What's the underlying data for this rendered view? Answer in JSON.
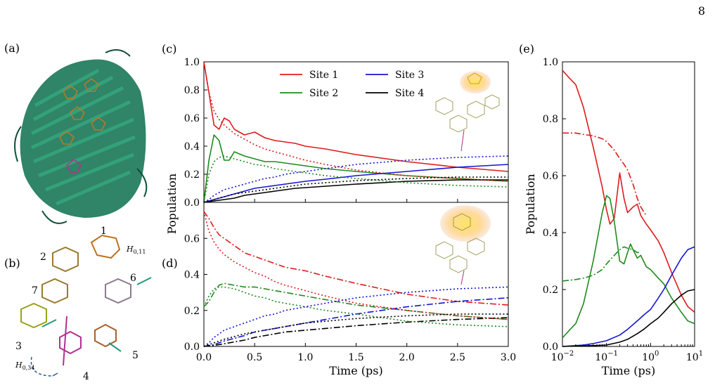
{
  "page_number": "8",
  "panel_labels": {
    "a": "(a)",
    "b": "(b)",
    "c": "(c)",
    "d": "(d)",
    "e": "(e)"
  },
  "structure_b": {
    "site_labels": [
      "1",
      "2",
      "3",
      "4",
      "5",
      "6",
      "7"
    ],
    "coupling_labels": {
      "h011": "H",
      "h011_sub": "0,11",
      "h034": "H",
      "h034_sub": "0,34"
    }
  },
  "colors": {
    "site1": "#dd1c1c",
    "site2": "#1f8a1f",
    "site3": "#1414d4",
    "site4": "#000000",
    "protein": "#1e7a5a"
  },
  "chart_data": [
    {
      "id": "c",
      "type": "line",
      "xlim": [
        0,
        3
      ],
      "ylim": [
        0,
        1
      ],
      "xticks": [
        "0.0",
        "0.5",
        "1.0",
        "1.5",
        "2.0",
        "2.5",
        "3.0"
      ],
      "xtick_values": [
        0,
        0.5,
        1,
        1.5,
        2,
        2.5,
        3
      ],
      "yticks": [
        "0.0",
        "0.2",
        "0.4",
        "0.6",
        "0.8",
        "1.0"
      ],
      "ytick_values": [
        0,
        0.2,
        0.4,
        0.6,
        0.8,
        1.0
      ],
      "ylabel": "Population",
      "legend": [
        "Site 1",
        "Site 2",
        "Site 3",
        "Site 4"
      ],
      "x": [
        0,
        0.05,
        0.1,
        0.15,
        0.2,
        0.25,
        0.3,
        0.4,
        0.5,
        0.6,
        0.7,
        0.8,
        0.9,
        1.0,
        1.2,
        1.5,
        2.0,
        2.5,
        3.0
      ],
      "series": [
        {
          "name": "Site 1",
          "style": "solid",
          "color": "site1",
          "values": [
            1.0,
            0.78,
            0.55,
            0.52,
            0.6,
            0.58,
            0.52,
            0.48,
            0.5,
            0.46,
            0.44,
            0.43,
            0.42,
            0.4,
            0.38,
            0.34,
            0.29,
            0.25,
            0.22
          ]
        },
        {
          "name": "Site 2",
          "style": "solid",
          "color": "site2",
          "values": [
            0.0,
            0.3,
            0.48,
            0.44,
            0.3,
            0.3,
            0.36,
            0.33,
            0.31,
            0.29,
            0.29,
            0.28,
            0.27,
            0.26,
            0.24,
            0.22,
            0.19,
            0.17,
            0.15
          ]
        },
        {
          "name": "Site 3",
          "style": "solid",
          "color": "site3",
          "values": [
            0.0,
            0.01,
            0.02,
            0.03,
            0.04,
            0.05,
            0.06,
            0.08,
            0.1,
            0.11,
            0.12,
            0.13,
            0.14,
            0.15,
            0.165,
            0.19,
            0.22,
            0.25,
            0.27
          ]
        },
        {
          "name": "Site 4",
          "style": "solid",
          "color": "site4",
          "values": [
            0.0,
            0.005,
            0.01,
            0.015,
            0.02,
            0.025,
            0.03,
            0.05,
            0.06,
            0.07,
            0.08,
            0.09,
            0.1,
            0.105,
            0.115,
            0.13,
            0.15,
            0.16,
            0.16
          ]
        },
        {
          "name": "",
          "style": "dotted",
          "color": "site1",
          "values": [
            1.0,
            0.78,
            0.65,
            0.59,
            0.55,
            0.52,
            0.49,
            0.45,
            0.41,
            0.38,
            0.36,
            0.34,
            0.32,
            0.3,
            0.27,
            0.23,
            0.19,
            0.17,
            0.15
          ]
        },
        {
          "name": "",
          "style": "dotted",
          "color": "site2",
          "values": [
            0.0,
            0.2,
            0.29,
            0.32,
            0.33,
            0.32,
            0.31,
            0.29,
            0.27,
            0.26,
            0.24,
            0.23,
            0.22,
            0.21,
            0.19,
            0.17,
            0.14,
            0.12,
            0.11
          ]
        },
        {
          "name": "",
          "style": "dotted",
          "color": "site3",
          "values": [
            0.0,
            0.02,
            0.05,
            0.07,
            0.09,
            0.1,
            0.11,
            0.13,
            0.15,
            0.17,
            0.18,
            0.2,
            0.21,
            0.22,
            0.24,
            0.27,
            0.3,
            0.32,
            0.33
          ]
        },
        {
          "name": "",
          "style": "dotted",
          "color": "site4",
          "values": [
            0.0,
            0.01,
            0.02,
            0.03,
            0.04,
            0.05,
            0.06,
            0.07,
            0.08,
            0.09,
            0.1,
            0.11,
            0.12,
            0.13,
            0.14,
            0.155,
            0.17,
            0.18,
            0.18
          ]
        }
      ]
    },
    {
      "id": "d",
      "type": "line",
      "xlim": [
        0,
        3
      ],
      "ylim": [
        0,
        0.8
      ],
      "xticks": [
        "0.0",
        "0.5",
        "1.0",
        "1.5",
        "2.0",
        "2.5",
        "3.0"
      ],
      "xtick_values": [
        0,
        0.5,
        1,
        1.5,
        2,
        2.5,
        3
      ],
      "yticks": [
        "0.0",
        "0.2",
        "0.4",
        "0.6"
      ],
      "ytick_values": [
        0,
        0.2,
        0.4,
        0.6
      ],
      "xlabel": "Time (ps)",
      "x": [
        0,
        0.05,
        0.1,
        0.15,
        0.2,
        0.3,
        0.4,
        0.5,
        0.6,
        0.7,
        0.8,
        1.0,
        1.2,
        1.5,
        2.0,
        2.5,
        3.0
      ],
      "series": [
        {
          "name": "",
          "style": "dashdot",
          "color": "site1",
          "values": [
            0.75,
            0.71,
            0.66,
            0.62,
            0.6,
            0.56,
            0.52,
            0.5,
            0.48,
            0.46,
            0.44,
            0.42,
            0.39,
            0.35,
            0.29,
            0.25,
            0.23
          ]
        },
        {
          "name": "",
          "style": "dashdot",
          "color": "site2",
          "values": [
            0.22,
            0.25,
            0.3,
            0.34,
            0.35,
            0.34,
            0.33,
            0.33,
            0.32,
            0.31,
            0.3,
            0.28,
            0.26,
            0.23,
            0.2,
            0.17,
            0.15
          ]
        },
        {
          "name": "",
          "style": "dashdot",
          "color": "site3",
          "values": [
            0.0,
            0.005,
            0.01,
            0.02,
            0.03,
            0.045,
            0.06,
            0.08,
            0.09,
            0.1,
            0.11,
            0.13,
            0.15,
            0.18,
            0.22,
            0.25,
            0.27
          ]
        },
        {
          "name": "",
          "style": "dashdot",
          "color": "site4",
          "values": [
            0.0,
            0.003,
            0.006,
            0.01,
            0.015,
            0.025,
            0.035,
            0.05,
            0.06,
            0.07,
            0.08,
            0.09,
            0.1,
            0.115,
            0.135,
            0.15,
            0.16
          ]
        },
        {
          "name": "",
          "style": "dotted",
          "color": "site1",
          "values": [
            0.75,
            0.64,
            0.58,
            0.54,
            0.51,
            0.47,
            0.44,
            0.41,
            0.39,
            0.36,
            0.34,
            0.31,
            0.28,
            0.24,
            0.2,
            0.17,
            0.15
          ]
        },
        {
          "name": "",
          "style": "dotted",
          "color": "site2",
          "values": [
            0.22,
            0.28,
            0.32,
            0.33,
            0.33,
            0.32,
            0.3,
            0.28,
            0.27,
            0.25,
            0.24,
            0.22,
            0.2,
            0.18,
            0.14,
            0.12,
            0.11
          ]
        },
        {
          "name": "",
          "style": "dotted",
          "color": "site3",
          "values": [
            0.0,
            0.02,
            0.05,
            0.07,
            0.09,
            0.11,
            0.13,
            0.15,
            0.17,
            0.18,
            0.2,
            0.22,
            0.24,
            0.27,
            0.3,
            0.32,
            0.33
          ]
        },
        {
          "name": "",
          "style": "dotted",
          "color": "site4",
          "values": [
            0.0,
            0.01,
            0.02,
            0.03,
            0.04,
            0.055,
            0.07,
            0.08,
            0.09,
            0.1,
            0.11,
            0.13,
            0.14,
            0.155,
            0.17,
            0.18,
            0.18
          ]
        }
      ]
    },
    {
      "id": "e",
      "type": "line",
      "xscale": "log",
      "xlim": [
        0.01,
        10
      ],
      "ylim": [
        0,
        1
      ],
      "xtick_base": "10",
      "xtick_exponents": [
        "−2",
        "−1",
        "0",
        "1"
      ],
      "xtick_values": [
        0.01,
        0.1,
        1,
        10
      ],
      "yticks": [
        "0.0",
        "0.2",
        "0.4",
        "0.6",
        "0.8",
        "1.0"
      ],
      "ytick_values": [
        0,
        0.2,
        0.4,
        0.6,
        0.8,
        1.0
      ],
      "xlabel": "Time (ps)",
      "ylabel": "Population",
      "series": [
        {
          "name": "",
          "style": "solid",
          "color": "site1",
          "x": [
            0.01,
            0.015,
            0.02,
            0.03,
            0.05,
            0.08,
            0.1,
            0.12,
            0.15,
            0.2,
            0.25,
            0.3,
            0.4,
            0.5,
            0.6,
            0.8,
            1.0,
            1.5,
            2,
            3,
            5,
            7,
            10
          ],
          "values": [
            0.97,
            0.94,
            0.92,
            0.84,
            0.7,
            0.56,
            0.48,
            0.43,
            0.45,
            0.61,
            0.52,
            0.47,
            0.49,
            0.5,
            0.46,
            0.43,
            0.41,
            0.37,
            0.33,
            0.26,
            0.18,
            0.14,
            0.12
          ]
        },
        {
          "name": "",
          "style": "solid",
          "color": "site2",
          "x": [
            0.01,
            0.015,
            0.02,
            0.03,
            0.05,
            0.08,
            0.1,
            0.12,
            0.15,
            0.2,
            0.25,
            0.3,
            0.35,
            0.4,
            0.5,
            0.6,
            0.8,
            1.0,
            1.5,
            2,
            3,
            5,
            7,
            10
          ],
          "values": [
            0.03,
            0.06,
            0.08,
            0.15,
            0.3,
            0.47,
            0.53,
            0.52,
            0.44,
            0.3,
            0.29,
            0.33,
            0.36,
            0.34,
            0.31,
            0.32,
            0.28,
            0.27,
            0.24,
            0.22,
            0.17,
            0.12,
            0.09,
            0.08
          ]
        },
        {
          "name": "",
          "style": "solid",
          "color": "site3",
          "x": [
            0.01,
            0.03,
            0.05,
            0.1,
            0.2,
            0.3,
            0.5,
            0.7,
            1.0,
            1.5,
            2,
            3,
            5,
            7,
            10
          ],
          "values": [
            0.0,
            0.005,
            0.01,
            0.02,
            0.04,
            0.06,
            0.09,
            0.11,
            0.13,
            0.17,
            0.2,
            0.25,
            0.31,
            0.34,
            0.35
          ]
        },
        {
          "name": "",
          "style": "solid",
          "color": "site4",
          "x": [
            0.01,
            0.05,
            0.1,
            0.2,
            0.3,
            0.5,
            0.7,
            1.0,
            1.5,
            2,
            3,
            5,
            7,
            10
          ],
          "values": [
            0.0,
            0.003,
            0.005,
            0.015,
            0.025,
            0.045,
            0.06,
            0.08,
            0.1,
            0.12,
            0.15,
            0.18,
            0.195,
            0.2
          ]
        },
        {
          "name": "",
          "style": "dashdot",
          "color": "site1",
          "x": [
            0.01,
            0.02,
            0.03,
            0.05,
            0.08,
            0.1,
            0.15,
            0.2,
            0.25,
            0.3,
            0.4,
            0.5,
            0.6,
            0.8
          ],
          "values": [
            0.75,
            0.75,
            0.745,
            0.74,
            0.73,
            0.72,
            0.69,
            0.66,
            0.64,
            0.62,
            0.57,
            0.52,
            0.49,
            0.46
          ]
        },
        {
          "name": "",
          "style": "dashdot",
          "color": "site2",
          "x": [
            0.01,
            0.02,
            0.03,
            0.05,
            0.08,
            0.1,
            0.15,
            0.2,
            0.25,
            0.3,
            0.4,
            0.5,
            0.6
          ],
          "values": [
            0.23,
            0.235,
            0.24,
            0.25,
            0.27,
            0.29,
            0.32,
            0.34,
            0.35,
            0.345,
            0.34,
            0.33,
            0.33
          ]
        }
      ]
    }
  ]
}
